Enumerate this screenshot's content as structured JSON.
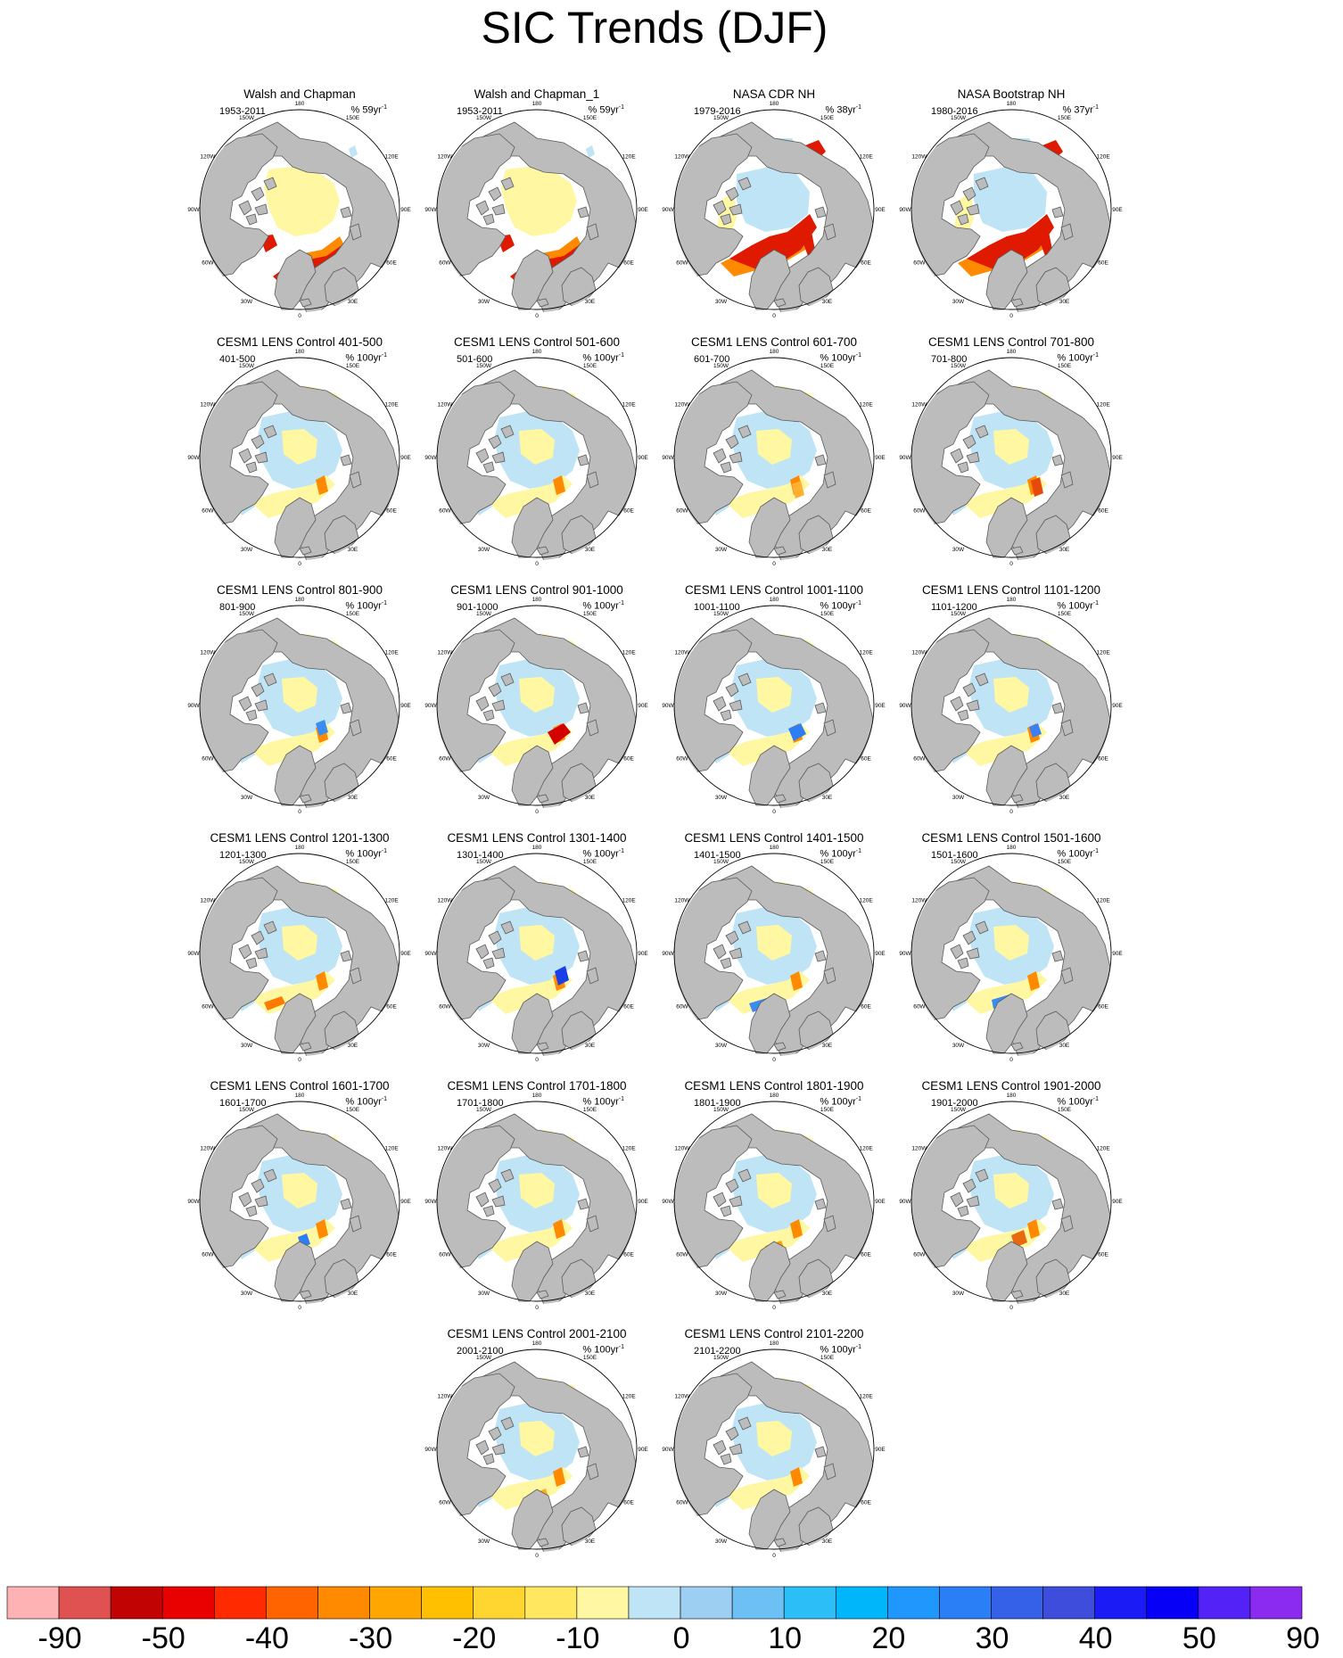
{
  "title": "SIC Trends (DJF)",
  "colors": {
    "land": "#bcbcbc",
    "ocean": "#ffffff",
    "coast": "#5a5a5a"
  },
  "lon_labels": [
    "180",
    "150E",
    "120E",
    "90E",
    "60E",
    "30E",
    "0",
    "30W",
    "60W",
    "90W",
    "120W",
    "150W"
  ],
  "panels": [
    {
      "title": "Walsh and Chapman",
      "years": "1953-2011",
      "units_prefix": "% 59yr",
      "units_sup": "-1",
      "style": "obs"
    },
    {
      "title": "Walsh and Chapman_1",
      "years": "1953-2011",
      "units_prefix": "% 59yr",
      "units_sup": "-1",
      "style": "obs"
    },
    {
      "title": "NASA CDR NH",
      "years": "1979-2016",
      "units_prefix": "% 38yr",
      "units_sup": "-1",
      "style": "sat"
    },
    {
      "title": "NASA Bootstrap NH",
      "years": "1980-2016",
      "units_prefix": "% 37yr",
      "units_sup": "-1",
      "style": "sat"
    },
    {
      "title": "CESM1 LENS Control 401-500",
      "years": "401-500",
      "units_prefix": "% 100yr",
      "units_sup": "-1",
      "style": "model"
    },
    {
      "title": "CESM1 LENS Control 501-600",
      "years": "501-600",
      "units_prefix": "% 100yr",
      "units_sup": "-1",
      "style": "model"
    },
    {
      "title": "CESM1 LENS Control 601-700",
      "years": "601-700",
      "units_prefix": "% 100yr",
      "units_sup": "-1",
      "style": "model"
    },
    {
      "title": "CESM1 LENS Control 701-800",
      "years": "701-800",
      "units_prefix": "% 100yr",
      "units_sup": "-1",
      "style": "model"
    },
    {
      "title": "CESM1 LENS Control 801-900",
      "years": "801-900",
      "units_prefix": "% 100yr",
      "units_sup": "-1",
      "style": "model"
    },
    {
      "title": "CESM1 LENS Control 901-1000",
      "years": "901-1000",
      "units_prefix": "% 100yr",
      "units_sup": "-1",
      "style": "model"
    },
    {
      "title": "CESM1 LENS Control 1001-1100",
      "years": "1001-1100",
      "units_prefix": "% 100yr",
      "units_sup": "-1",
      "style": "model"
    },
    {
      "title": "CESM1 LENS Control 1101-1200",
      "years": "1101-1200",
      "units_prefix": "% 100yr",
      "units_sup": "-1",
      "style": "model"
    },
    {
      "title": "CESM1 LENS Control 1201-1300",
      "years": "1201-1300",
      "units_prefix": "% 100yr",
      "units_sup": "-1",
      "style": "model"
    },
    {
      "title": "CESM1 LENS Control 1301-1400",
      "years": "1301-1400",
      "units_prefix": "% 100yr",
      "units_sup": "-1",
      "style": "model"
    },
    {
      "title": "CESM1 LENS Control 1401-1500",
      "years": "1401-1500",
      "units_prefix": "% 100yr",
      "units_sup": "-1",
      "style": "model"
    },
    {
      "title": "CESM1 LENS Control 1501-1600",
      "years": "1501-1600",
      "units_prefix": "% 100yr",
      "units_sup": "-1",
      "style": "model"
    },
    {
      "title": "CESM1 LENS Control 1601-1700",
      "years": "1601-1700",
      "units_prefix": "% 100yr",
      "units_sup": "-1",
      "style": "model"
    },
    {
      "title": "CESM1 LENS Control 1701-1800",
      "years": "1701-1800",
      "units_prefix": "% 100yr",
      "units_sup": "-1",
      "style": "model"
    },
    {
      "title": "CESM1 LENS Control 1801-1900",
      "years": "1801-1900",
      "units_prefix": "% 100yr",
      "units_sup": "-1",
      "style": "model"
    },
    {
      "title": "CESM1 LENS Control 1901-2000",
      "years": "1901-2000",
      "units_prefix": "% 100yr",
      "units_sup": "-1",
      "style": "model"
    },
    {
      "title": "CESM1 LENS Control 2001-2100",
      "years": "2001-2100",
      "units_prefix": "% 100yr",
      "units_sup": "-1",
      "style": "model"
    },
    {
      "title": "CESM1 LENS Control 2101-2200",
      "years": "2101-2200",
      "units_prefix": "% 100yr",
      "units_sup": "-1",
      "style": "model"
    }
  ],
  "colorbar": {
    "colors": [
      "#fdb3b3",
      "#e05151",
      "#c20303",
      "#e90000",
      "#ff2a00",
      "#ff6400",
      "#ff8a00",
      "#ffa600",
      "#ffc000",
      "#ffd630",
      "#ffe860",
      "#fff7a2",
      "#bfe4f6",
      "#9ccff1",
      "#6dc0f4",
      "#2cbef6",
      "#00b6fb",
      "#1f97fd",
      "#2a7ef6",
      "#3461e8",
      "#3e4ddc",
      "#1b1bf5",
      "#0700f6",
      "#5222f6",
      "#8a2bef"
    ],
    "labels": [
      "-90",
      "-50",
      "-40",
      "-30",
      "-20",
      "-10",
      "0",
      "10",
      "20",
      "30",
      "40",
      "50",
      "90"
    ]
  }
}
